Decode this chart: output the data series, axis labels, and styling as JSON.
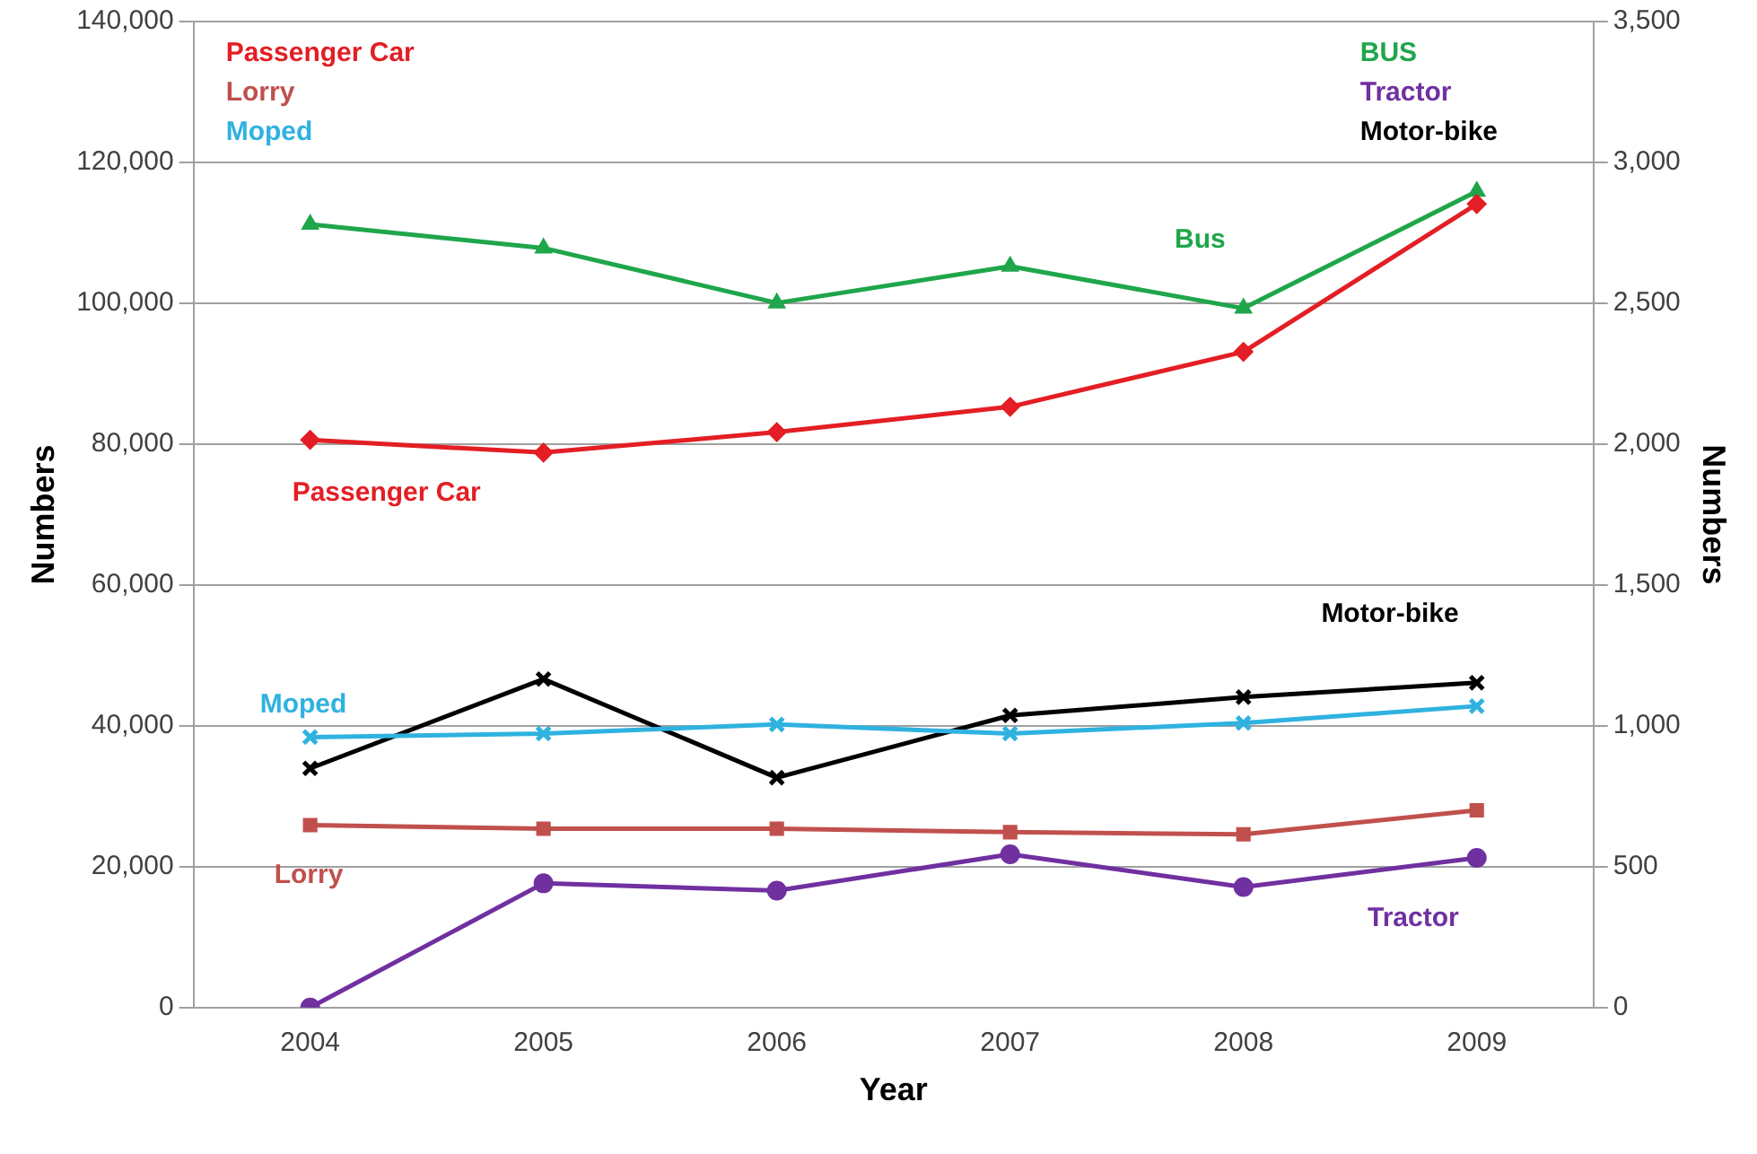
{
  "chart_data": {
    "type": "line",
    "xlabel": "Year",
    "ylabel": "Numbers",
    "y2label": "Numbers",
    "categories": [
      "2004",
      "2005",
      "2006",
      "2007",
      "2008",
      "2009"
    ],
    "series": [
      {
        "name": "Passenger Car",
        "color": "#e31e24",
        "marker": "diamond",
        "values": [
          80600,
          78800,
          81700,
          85300,
          93100,
          114100
        ]
      },
      {
        "name": "Lorry",
        "color": "#c0504d",
        "marker": "square",
        "values": [
          25900,
          25400,
          25400,
          24900,
          24600,
          28000
        ]
      },
      {
        "name": "Moped",
        "color": "#2fb2df",
        "marker": "cross",
        "values": [
          38400,
          38900,
          40200,
          38900,
          40400,
          42800
        ]
      },
      {
        "name": "Bus",
        "color": "#1fa64a",
        "marker": "triangle",
        "axis": "y2",
        "values": [
          2780,
          2696,
          2501,
          2631,
          2482,
          2897
        ]
      },
      {
        "name": "Tractor",
        "color": "#7030a0",
        "marker": "circle",
        "axis": "y2",
        "values": [
          0,
          441,
          415,
          544,
          428,
          531
        ]
      },
      {
        "name": "Motor-bike",
        "color": "#000000",
        "marker": "cross",
        "axis": "y2",
        "values": [
          849,
          1166,
          816,
          1037,
          1102,
          1153
        ]
      }
    ],
    "annotations": [
      "Passenger Car",
      "Lorry",
      "Moped",
      "BUS",
      "Tractor",
      "Motor-bike"
    ],
    "ylim": [
      0,
      140000
    ],
    "yticks": [
      0,
      {
        "value": 20000,
        "label": "20,000"
      },
      {
        "value": 40000,
        "label": "40,000"
      },
      {
        "value": 60000,
        "label": "60,000"
      },
      {
        "value": 80000,
        "label": "80,000"
      },
      {
        "value": 100000,
        "label": "100,000"
      },
      {
        "value": 120000,
        "label": "120,000"
      },
      {
        "value": 140000,
        "label": "140,000"
      }
    ],
    "y2lim": [
      0,
      3500
    ],
    "y2ticks": [
      0,
      500,
      {
        "value": 1000,
        "label": "1,000"
      },
      {
        "value": 1500,
        "label": "1,500"
      },
      {
        "value": 2000,
        "label": "2,000"
      },
      {
        "value": 2500,
        "label": "2,500"
      },
      {
        "value": 3000,
        "label": "3,000"
      },
      {
        "value": 3500,
        "label": "3,500"
      }
    ],
    "grid": "y",
    "legend": false
  }
}
